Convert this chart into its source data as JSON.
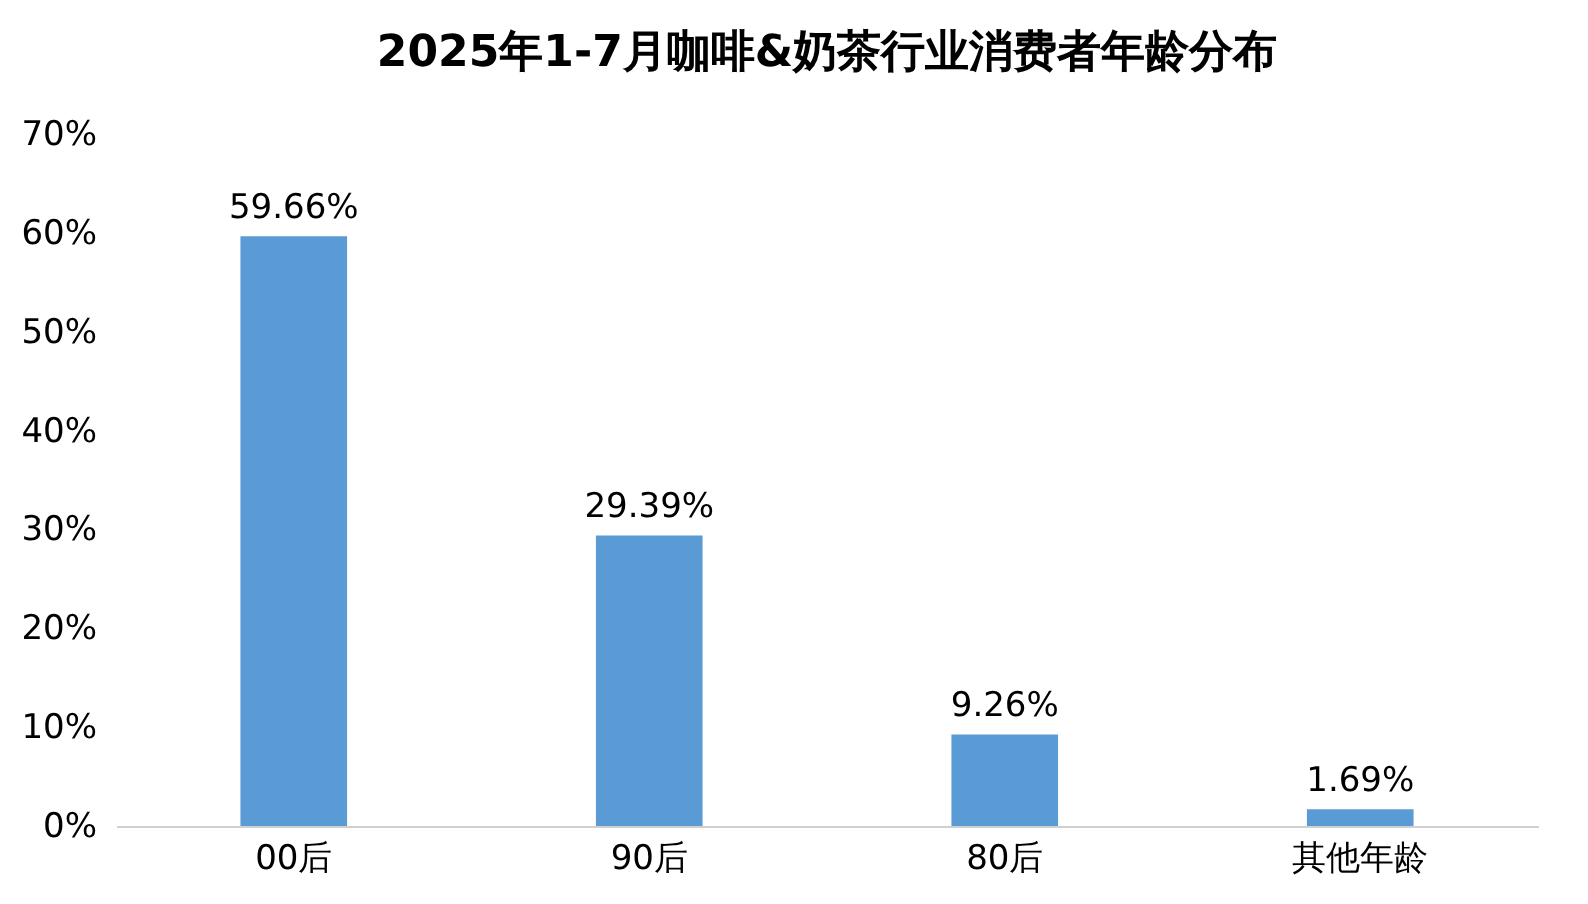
{
  "chart_data": {
    "type": "bar",
    "title": "2025年1-7月咖啡&奶茶行业消费者年龄分布",
    "categories": [
      "00后",
      "90后",
      "80后",
      "其他年龄"
    ],
    "values": [
      59.66,
      29.39,
      9.26,
      1.69
    ],
    "value_labels": [
      "59.66%",
      "29.39%",
      "9.26%",
      "1.69%"
    ],
    "color": "#5b9bd5",
    "ylim": [
      0,
      70
    ],
    "yticks": [
      {
        "value": 0,
        "label": "0%"
      },
      {
        "value": 10,
        "label": "10%"
      },
      {
        "value": 20,
        "label": "20%"
      },
      {
        "value": 30,
        "label": "30%"
      },
      {
        "value": 40,
        "label": "40%"
      },
      {
        "value": 50,
        "label": "50%"
      },
      {
        "value": 60,
        "label": "60%"
      },
      {
        "value": 70,
        "label": "70%"
      }
    ],
    "grid": false
  }
}
